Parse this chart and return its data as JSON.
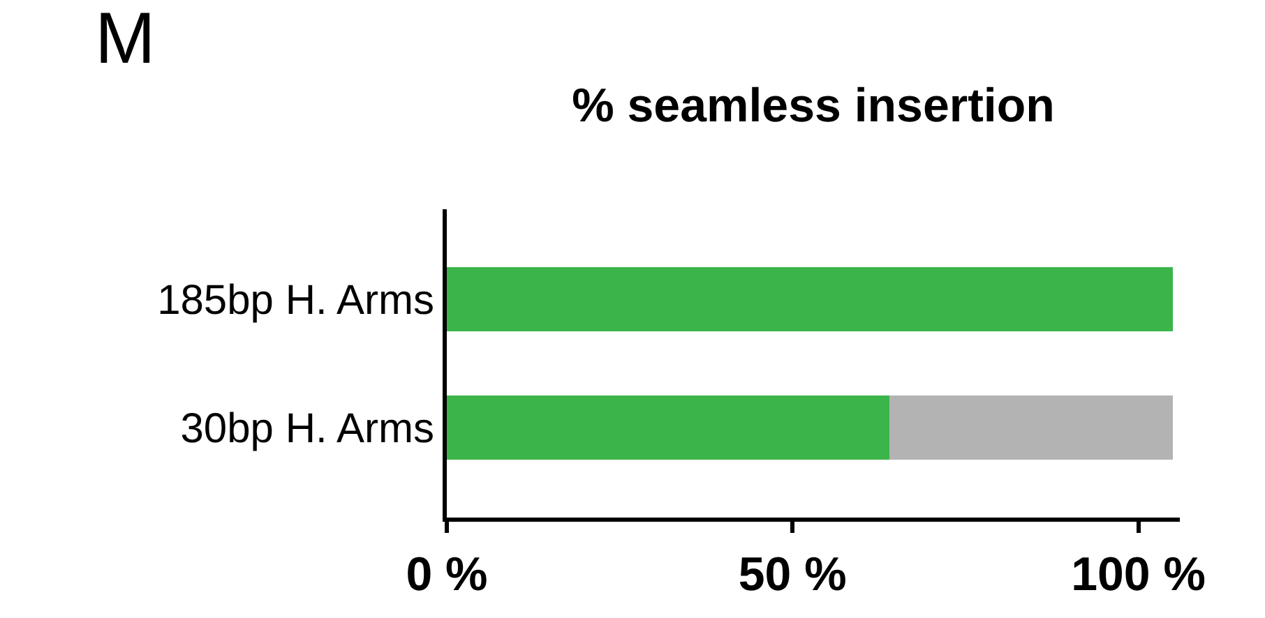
{
  "chart_data": {
    "type": "bar",
    "title": "% seamless insertion",
    "orientation": "horizontal",
    "stacked": true,
    "categories": [
      "185bp H. Arms",
      "30bp H. Arms"
    ],
    "series": [
      {
        "color": "#3bb54a",
        "values": [
          105,
          64
        ]
      },
      {
        "color": "#b3b3b3",
        "values": [
          null,
          41
        ]
      }
    ],
    "xlim": [
      0,
      106
    ],
    "xticks": [
      {
        "value": 0,
        "label": "0 %"
      },
      {
        "value": 50,
        "label": "50 %"
      },
      {
        "value": 100,
        "label": "100 %"
      }
    ],
    "annotations": [
      "M"
    ]
  }
}
